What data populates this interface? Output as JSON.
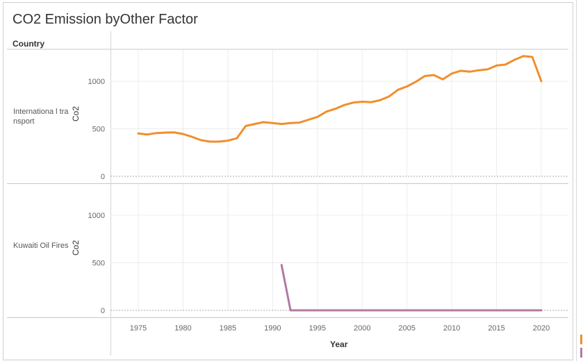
{
  "title": "CO2 Emission byOther Factor",
  "header_label": "Country",
  "rows": [
    {
      "label": "Internationa l transport",
      "ylabel": "Co2"
    },
    {
      "label": "Kuwaiti Oil Fires",
      "ylabel": "Co2"
    }
  ],
  "colors": {
    "transport": "#f28e2b",
    "kuwait": "#b07aa1",
    "grid": "#ececec",
    "axis": "#bbbbbb"
  },
  "chart_data": {
    "type": "line",
    "xlabel": "Year",
    "ylabel": "Co2",
    "xlim": [
      1973,
      2022
    ],
    "ylim": [
      0,
      1350
    ],
    "x_ticks": [
      1975,
      1980,
      1985,
      1990,
      1995,
      2000,
      2005,
      2010,
      2015,
      2020
    ],
    "y_ticks": [
      0,
      500,
      1000
    ],
    "panels": [
      {
        "name": "Internationa l transport",
        "color": "#f28e2b",
        "x": [
          1975,
          1976,
          1977,
          1978,
          1979,
          1980,
          1981,
          1982,
          1983,
          1984,
          1985,
          1986,
          1987,
          1988,
          1989,
          1990,
          1991,
          1992,
          1993,
          1994,
          1995,
          1996,
          1997,
          1998,
          1999,
          2000,
          2001,
          2002,
          2003,
          2004,
          2005,
          2006,
          2007,
          2008,
          2009,
          2010,
          2011,
          2012,
          2013,
          2014,
          2015,
          2016,
          2017,
          2018,
          2019,
          2020
        ],
        "y": [
          450,
          440,
          455,
          460,
          462,
          445,
          415,
          380,
          365,
          365,
          375,
          400,
          530,
          550,
          570,
          560,
          550,
          560,
          565,
          595,
          625,
          680,
          710,
          750,
          775,
          785,
          780,
          800,
          840,
          910,
          945,
          995,
          1055,
          1065,
          1020,
          1080,
          1110,
          1100,
          1115,
          1125,
          1165,
          1175,
          1225,
          1265,
          1255,
          1000
        ]
      },
      {
        "name": "Kuwaiti Oil Fires",
        "color": "#b07aa1",
        "x": [
          1991,
          1992,
          1993,
          1995,
          2000,
          2005,
          2010,
          2015,
          2020
        ],
        "y": [
          477,
          0,
          0,
          0,
          0,
          0,
          0,
          0,
          0
        ]
      }
    ]
  }
}
